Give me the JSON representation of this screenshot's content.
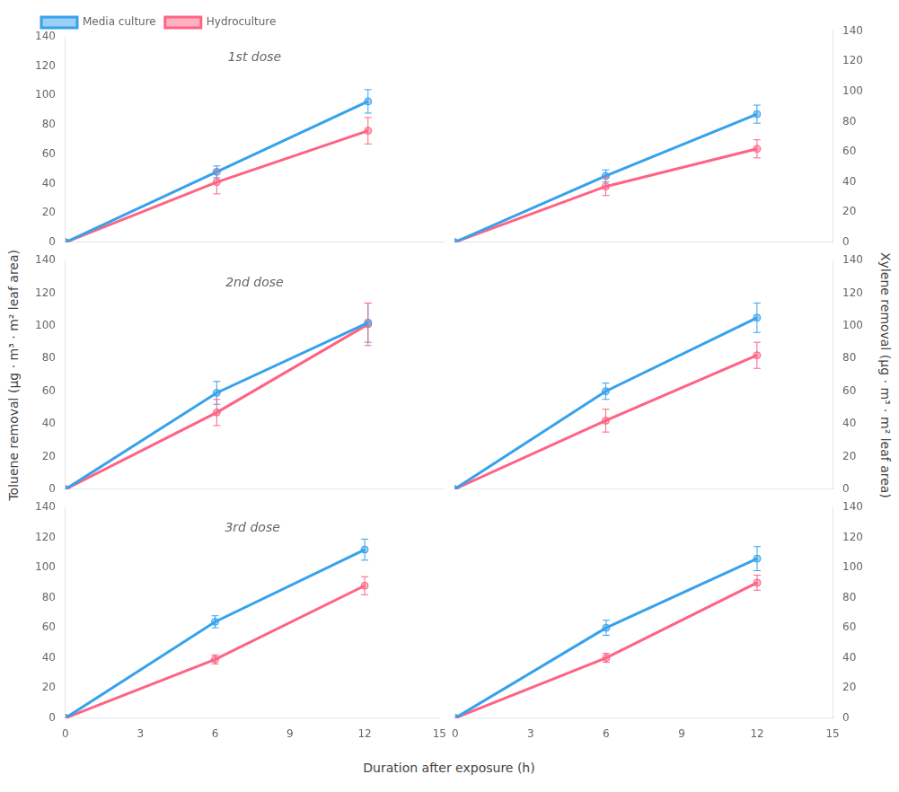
{
  "chart_data": [
    {
      "type": "line",
      "title": "1st dose",
      "x": [
        0,
        6,
        12
      ],
      "series": [
        {
          "name": "Media culture",
          "values": [
            0,
            48,
            96
          ],
          "errors": [
            0,
            4,
            8
          ],
          "marker": "circle"
        },
        {
          "name": "Hydroculture",
          "values": [
            0,
            41,
            76
          ],
          "errors": [
            0,
            8,
            9
          ],
          "marker": "circle"
        }
      ],
      "xlim": [
        0,
        15
      ],
      "xticks": [
        0,
        3,
        6,
        9,
        12,
        15
      ],
      "ylim": [
        0,
        140
      ],
      "yticks": [
        0,
        20,
        40,
        60,
        80,
        100,
        120,
        140
      ],
      "grid": false,
      "legend": "upper left",
      "tick_labels": "y"
    },
    {
      "type": "line",
      "x": [
        0,
        6,
        12
      ],
      "series": [
        {
          "name": "Media culture",
          "values": [
            0,
            44,
            85
          ],
          "errors": [
            0,
            4,
            6
          ],
          "marker": "circle",
          "axis": "y2"
        },
        {
          "name": "Hydroculture",
          "values": [
            0,
            37,
            62
          ],
          "errors": [
            0,
            6,
            6
          ],
          "marker": "circle",
          "axis": "y2"
        }
      ],
      "xlim": [
        0,
        15
      ],
      "xticks": [
        0,
        3,
        6,
        9,
        12,
        15
      ],
      "y2lim": [
        0,
        140
      ],
      "y2ticks": [
        0,
        20,
        40,
        60,
        80,
        100,
        120,
        140
      ],
      "grid": false,
      "tick_labels": "y"
    },
    {
      "type": "line",
      "title": "2nd dose",
      "x": [
        0,
        6,
        12
      ],
      "ylabel": "Toluene removal (μg · m³ · m² leaf area)",
      "series": [
        {
          "name": "Media culture",
          "values": [
            0,
            59,
            102
          ],
          "errors": [
            0,
            7,
            12
          ],
          "marker": "circle"
        },
        {
          "name": "Hydroculture",
          "values": [
            0,
            47,
            101
          ],
          "errors": [
            0,
            8,
            13
          ],
          "marker": "circle"
        }
      ],
      "xlim": [
        0,
        15
      ],
      "xticks": [
        0,
        3,
        6,
        9,
        12,
        15
      ],
      "ylim": [
        0,
        140
      ],
      "yticks": [
        0,
        20,
        40,
        60,
        80,
        100,
        120,
        140
      ],
      "grid": false,
      "tick_labels": "y"
    },
    {
      "type": "line",
      "x": [
        0,
        6,
        12
      ],
      "y2label": "Xylene removal (μg · m³ · m² leaf area)",
      "series": [
        {
          "name": "Media culture",
          "values": [
            0,
            60,
            105
          ],
          "errors": [
            0,
            5,
            9
          ],
          "marker": "circle",
          "axis": "y2"
        },
        {
          "name": "Hydroculture",
          "values": [
            0,
            42,
            82
          ],
          "errors": [
            0,
            7,
            8
          ],
          "marker": "circle",
          "axis": "y2"
        }
      ],
      "xlim": [
        0,
        15
      ],
      "xticks": [
        0,
        3,
        6,
        9,
        12,
        15
      ],
      "y2lim": [
        0,
        140
      ],
      "y2ticks": [
        0,
        20,
        40,
        60,
        80,
        100,
        120,
        140
      ],
      "grid": false,
      "tick_labels": "y"
    },
    {
      "type": "line",
      "title": "3rd dose",
      "x": [
        0,
        6,
        12
      ],
      "xlabel": "Duration after exposure (h)",
      "series": [
        {
          "name": "Media culture",
          "values": [
            0,
            64,
            112
          ],
          "errors": [
            0,
            4,
            7
          ],
          "marker": "circle"
        },
        {
          "name": "Hydroculture",
          "values": [
            0,
            39,
            88
          ],
          "errors": [
            0,
            3,
            6
          ],
          "marker": "circle"
        }
      ],
      "xlim": [
        0,
        15
      ],
      "xticks": [
        0,
        3,
        6,
        9,
        12,
        15
      ],
      "ylim": [
        0,
        140
      ],
      "yticks": [
        0,
        20,
        40,
        60,
        80,
        100,
        120,
        140
      ],
      "grid": false
    },
    {
      "type": "line",
      "x": [
        0,
        6,
        12
      ],
      "series": [
        {
          "name": "Media culture",
          "values": [
            0,
            60,
            106
          ],
          "errors": [
            0,
            5,
            8
          ],
          "marker": "circle",
          "axis": "y2"
        },
        {
          "name": "Hydroculture",
          "values": [
            0,
            40,
            90
          ],
          "errors": [
            0,
            3,
            5
          ],
          "marker": "circle",
          "axis": "y2"
        }
      ],
      "xlim": [
        0,
        15
      ],
      "xticks": [
        0,
        3,
        6,
        9,
        12,
        15
      ],
      "y2lim": [
        0,
        140
      ],
      "y2ticks": [
        0,
        20,
        40,
        60,
        80,
        100,
        120,
        140
      ],
      "grid": false
    }
  ]
}
